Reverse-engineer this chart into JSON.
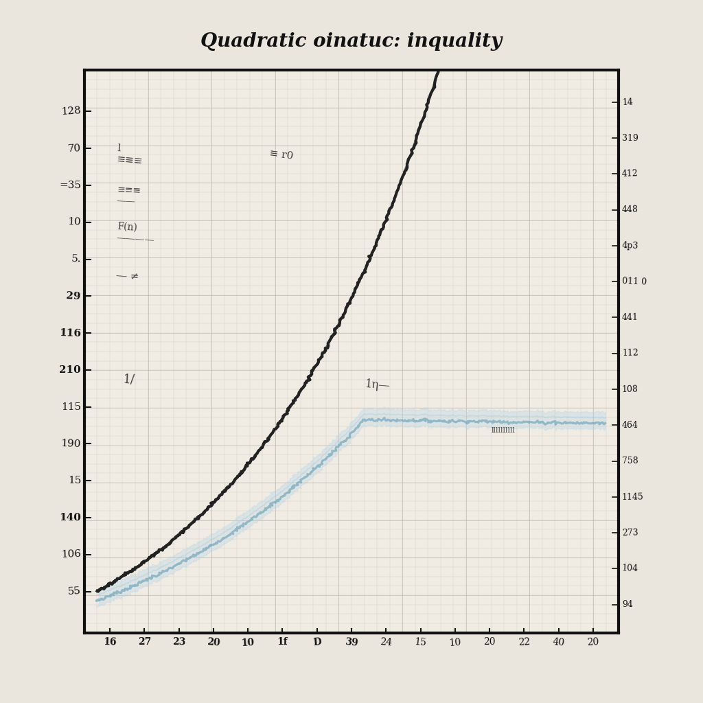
{
  "title": "Quadratic oinatuc: inquality",
  "background_color": "#eae6de",
  "plot_bg_color": "#f0ece4",
  "grid_color_fine": "#d0ccc4",
  "grid_color_major": "#c0bcb4",
  "x_range": [
    -32,
    52
  ],
  "y_range": [
    35,
    335
  ],
  "curve1_color": "#1a1a1a",
  "curve2_color": "#7aaabe",
  "curve2_fill": "#b8d4e4",
  "title_fontsize": 20,
  "y_left_labels": [
    "128",
    "70",
    "=35",
    "10",
    "5.",
    "29",
    "116",
    "210",
    "115",
    "190",
    "15",
    "140",
    "106",
    "55"
  ],
  "y_right_labels": [
    "14",
    "319",
    "412",
    "448",
    "4p3",
    "011 0",
    "441",
    "112",
    "108",
    "464",
    "758",
    "1145",
    "273",
    "104",
    "94"
  ],
  "x_labels": [
    "16",
    "27",
    "23",
    "20",
    "10",
    "1f",
    "D",
    "39",
    "24",
    "15",
    "10",
    "20",
    "22",
    "40",
    "20"
  ]
}
